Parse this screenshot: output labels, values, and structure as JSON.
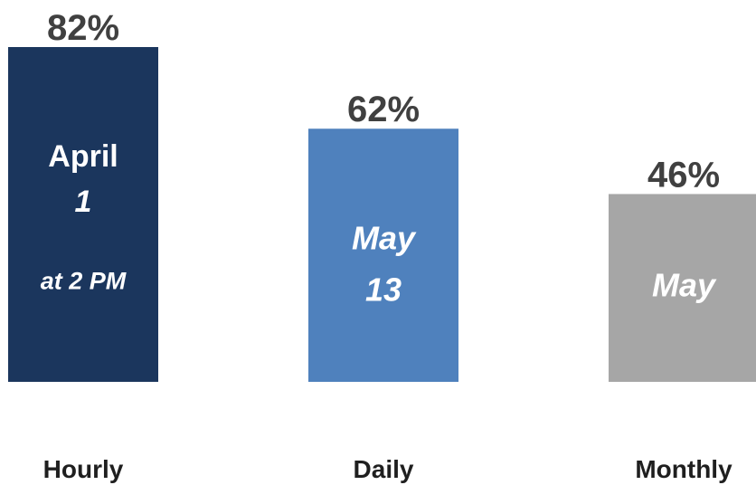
{
  "chart_data": {
    "type": "bar",
    "categories": [
      "Hourly",
      "Daily",
      "Monthly"
    ],
    "values": [
      82,
      62,
      46
    ],
    "value_labels": [
      "82%",
      "62%",
      "46%"
    ],
    "colors": [
      "#1b365d",
      "#4f81bd",
      "#a6a6a6"
    ],
    "bar_labels": [
      [
        "April",
        "1",
        "at 2 PM"
      ],
      [
        "May",
        "13"
      ],
      [
        "May"
      ]
    ]
  }
}
